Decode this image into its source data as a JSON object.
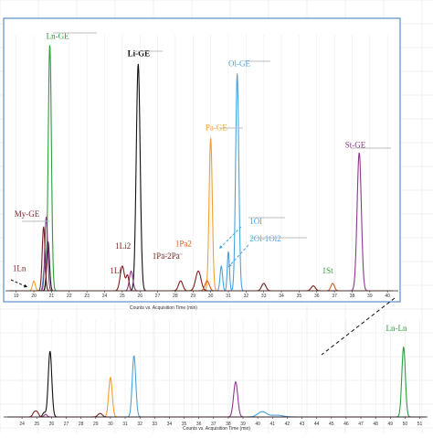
{
  "chart_data": [
    {
      "type": "line",
      "name": "top-inset",
      "xlabel": "Counts vs. Acquisition Time (min)",
      "x_ticks": [
        "19",
        "20",
        "21",
        "22",
        "23",
        "24",
        "25",
        "26",
        "27",
        "28",
        "29",
        "30",
        "31",
        "32",
        "33",
        "34",
        "35",
        "36",
        "37",
        "38",
        "39",
        "40"
      ],
      "xlim": [
        18.6,
        40.3
      ],
      "grid": true,
      "series": [
        {
          "color": "#2e9e3e",
          "peaks": [
            {
              "x": 20.9,
              "h": 1.0,
              "w": 0.09
            }
          ]
        },
        {
          "color": "#111111",
          "peaks": [
            {
              "x": 25.9,
              "h": 0.92,
              "w": 0.11
            },
            {
              "x": 20.8,
              "h": 0.2,
              "w": 0.08
            }
          ]
        },
        {
          "color": "#4aa3df",
          "peaks": [
            {
              "x": 31.5,
              "h": 0.88,
              "w": 0.09
            },
            {
              "x": 30.6,
              "h": 0.1,
              "w": 0.07
            },
            {
              "x": 31.0,
              "h": 0.16,
              "w": 0.06
            },
            {
              "x": 20.6,
              "h": 0.1,
              "w": 0.07
            }
          ]
        },
        {
          "color": "#f0a030",
          "peaks": [
            {
              "x": 30.0,
              "h": 0.62,
              "w": 0.09
            },
            {
              "x": 20.0,
              "h": 0.04,
              "w": 0.08
            }
          ]
        },
        {
          "color": "#8b3a8b",
          "peaks": [
            {
              "x": 38.4,
              "h": 0.56,
              "w": 0.12
            },
            {
              "x": 25.5,
              "h": 0.08,
              "w": 0.1
            },
            {
              "x": 20.7,
              "h": 0.3,
              "w": 0.08
            }
          ]
        },
        {
          "color": "#7a1f1f",
          "peaks": [
            {
              "x": 20.55,
              "h": 0.26,
              "w": 0.08
            },
            {
              "x": 25.0,
              "h": 0.1,
              "w": 0.12
            },
            {
              "x": 25.3,
              "h": 0.06,
              "w": 0.08
            },
            {
              "x": 29.3,
              "h": 0.08,
              "w": 0.15
            },
            {
              "x": 28.3,
              "h": 0.04,
              "w": 0.12
            },
            {
              "x": 33.0,
              "h": 0.03,
              "w": 0.12
            },
            {
              "x": 35.8,
              "h": 0.02,
              "w": 0.12
            }
          ]
        },
        {
          "color": "#d45a20",
          "peaks": [
            {
              "x": 29.8,
              "h": 0.04,
              "w": 0.12
            },
            {
              "x": 36.9,
              "h": 0.03,
              "w": 0.1
            }
          ]
        }
      ],
      "annotations": [
        {
          "text": "Ln-GE",
          "x": 20.7,
          "h": 1.02,
          "color": "#2e9e3e"
        },
        {
          "text": "Li-GE",
          "x": 25.3,
          "h": 0.95,
          "color": "#111111"
        },
        {
          "text": "Ol-GE",
          "x": 31.0,
          "h": 0.91,
          "color": "#4aa3df"
        },
        {
          "text": "Pa-GE",
          "x": 29.7,
          "h": 0.65,
          "color": "#f0a030"
        },
        {
          "text": "St-GE",
          "x": 37.6,
          "h": 0.58,
          "color": "#8b3a8b"
        },
        {
          "text": "My-GE",
          "x": 18.9,
          "h": 0.3,
          "color": "#7a1f1f"
        },
        {
          "text": "1Ol",
          "x": 32.2,
          "h": 0.27,
          "color": "#4aa3df"
        },
        {
          "text": "2Ol-1Ol2",
          "x": 32.2,
          "h": 0.2,
          "color": "#4aa3df"
        },
        {
          "text": "1Li2",
          "x": 24.6,
          "h": 0.17,
          "color": "#7a1f1f"
        },
        {
          "text": "1Pa2",
          "x": 28.0,
          "h": 0.18,
          "color": "#d45a20"
        },
        {
          "text": "1Pa-2Pa",
          "x": 26.7,
          "h": 0.13,
          "color": "#7a1f1f"
        },
        {
          "text": "1Li",
          "x": 24.3,
          "h": 0.07,
          "color": "#7a1f1f"
        },
        {
          "text": "1Ln",
          "x": 18.8,
          "h": 0.08,
          "color": "#7a1f1f"
        },
        {
          "text": "1St",
          "x": 36.3,
          "h": 0.07,
          "color": "#2e9e3e"
        }
      ]
    },
    {
      "type": "line",
      "name": "full-chromatogram",
      "xlabel": "Counts vs. Acquisition Time (min)",
      "x_ticks": [
        "24",
        "25",
        "26",
        "27",
        "28",
        "29",
        "30",
        "31",
        "32",
        "33",
        "34",
        "35",
        "36",
        "37",
        "38",
        "39",
        "40",
        "41",
        "42",
        "43",
        "44",
        "45",
        "46",
        "47",
        "48",
        "49",
        "50",
        "51"
      ],
      "xlim": [
        23.0,
        51.4
      ],
      "grid": true,
      "series": [
        {
          "color": "#2e9e3e",
          "peaks": [
            {
              "x": 49.9,
              "h": 0.8,
              "w": 0.12
            }
          ]
        },
        {
          "color": "#111111",
          "peaks": [
            {
              "x": 25.9,
              "h": 0.75,
              "w": 0.12
            },
            {
              "x": 25.5,
              "h": 0.05,
              "w": 0.1
            }
          ]
        },
        {
          "color": "#4aa3df",
          "peaks": [
            {
              "x": 31.6,
              "h": 0.7,
              "w": 0.12
            },
            {
              "x": 40.3,
              "h": 0.06,
              "w": 0.3
            },
            {
              "x": 41.3,
              "h": 0.02,
              "w": 0.4
            }
          ]
        },
        {
          "color": "#f0a030",
          "peaks": [
            {
              "x": 30.0,
              "h": 0.45,
              "w": 0.12
            }
          ]
        },
        {
          "color": "#8b3a8b",
          "peaks": [
            {
              "x": 38.5,
              "h": 0.4,
              "w": 0.14
            },
            {
              "x": 25.6,
              "h": 0.03,
              "w": 0.1
            }
          ]
        },
        {
          "color": "#7a1f1f",
          "peaks": [
            {
              "x": 25.0,
              "h": 0.06,
              "w": 0.12
            },
            {
              "x": 24.8,
              "h": 0.04,
              "w": 0.1
            },
            {
              "x": 29.3,
              "h": 0.04,
              "w": 0.15
            }
          ]
        }
      ],
      "annotations": [
        {
          "text": "Ln-Ln",
          "x": 48.7,
          "h": 0.98,
          "color": "#2e9e3e"
        }
      ]
    }
  ]
}
